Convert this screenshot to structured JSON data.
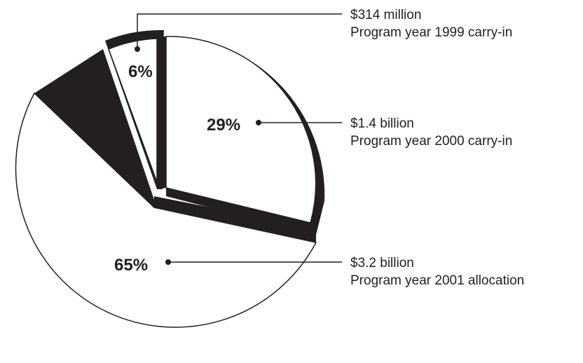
{
  "chart_data": {
    "type": "pie",
    "title": "",
    "slices": [
      {
        "percent": 29,
        "label": "29%",
        "amount": "$1.4 billion",
        "description": "Program year 2000 carry-in"
      },
      {
        "percent": 65,
        "label": "65%",
        "amount": "$3.2 billion",
        "description": "Program year 2001 allocation"
      },
      {
        "percent": 6,
        "label": "6%",
        "amount": "$314 million",
        "description": "Program year 1999 carry-in"
      }
    ],
    "style": "exploded 3D pie, black outlines, white fill, callout leader lines"
  },
  "colors": {
    "ink": "#231f20",
    "fill": "#ffffff"
  }
}
